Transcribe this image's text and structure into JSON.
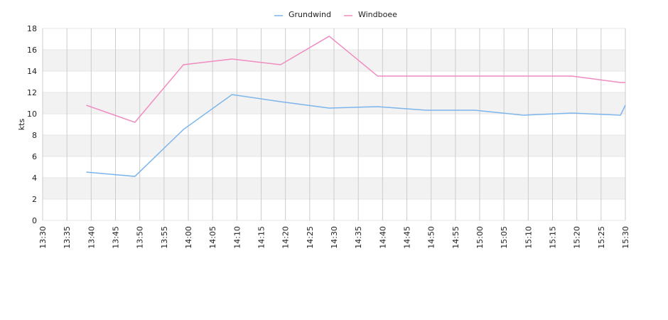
{
  "chart_data": {
    "type": "line",
    "y_label": "kts",
    "x": [
      "13:39",
      "13:49",
      "13:59",
      "14:09",
      "14:19",
      "14:29",
      "14:39",
      "14:49",
      "14:59",
      "15:09",
      "15:19",
      "15:29",
      "15:30"
    ],
    "series": [
      {
        "name": "Grundwind",
        "color": "#7cb5ec",
        "values": [
          4.53,
          4.13,
          8.53,
          11.8,
          11.13,
          10.53,
          10.67,
          10.33,
          10.33,
          9.87,
          10.07,
          9.87,
          10.8
        ]
      },
      {
        "name": "Windboee",
        "color": "#f08cc0",
        "values": [
          10.8,
          9.2,
          14.6,
          15.13,
          14.6,
          17.27,
          13.53,
          13.53,
          13.53,
          13.53,
          13.53,
          12.93,
          12.93
        ]
      }
    ],
    "xlim": [
      "13:30",
      "15:30"
    ],
    "xticks": [
      "13:30",
      "13:35",
      "13:40",
      "13:45",
      "13:50",
      "13:55",
      "14:00",
      "14:05",
      "14:10",
      "14:15",
      "14:20",
      "14:25",
      "14:30",
      "14:35",
      "14:40",
      "14:45",
      "14:50",
      "14:55",
      "15:00",
      "15:05",
      "15:10",
      "15:15",
      "15:20",
      "15:25",
      "15:30"
    ],
    "ylim": [
      0,
      18
    ],
    "yticks": [
      0,
      2,
      4,
      6,
      8,
      10,
      12,
      14,
      16,
      18
    ],
    "grid": true,
    "legend": "top"
  }
}
